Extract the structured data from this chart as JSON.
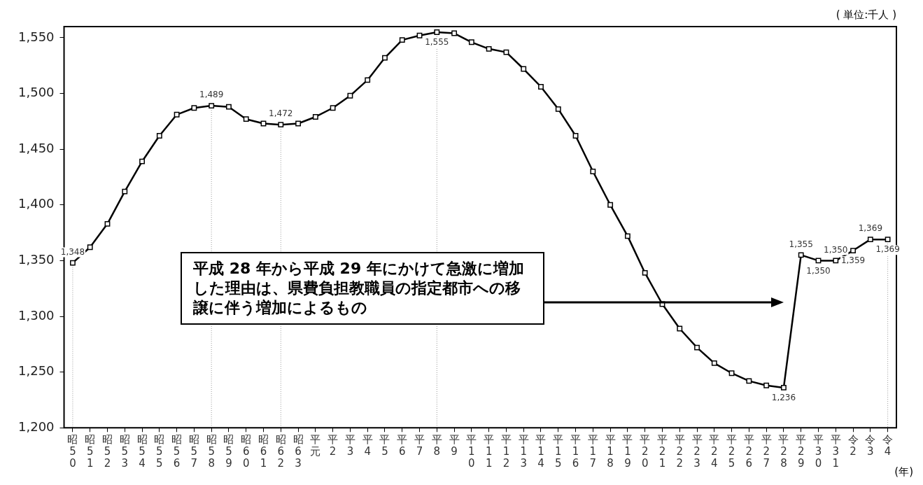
{
  "chart_data": {
    "type": "line",
    "ylabel": "( 単位:千人 )",
    "xlabel": "(年)",
    "categories": [
      "昭50",
      "昭51",
      "昭52",
      "昭53",
      "昭54",
      "昭55",
      "昭56",
      "昭57",
      "昭58",
      "昭59",
      "昭60",
      "昭61",
      "昭62",
      "昭63",
      "平元",
      "平2",
      "平3",
      "平4",
      "平5",
      "平6",
      "平7",
      "平8",
      "平9",
      "平10",
      "平11",
      "平12",
      "平13",
      "平14",
      "平15",
      "平16",
      "平17",
      "平18",
      "平19",
      "平20",
      "平21",
      "平22",
      "平23",
      "平24",
      "平25",
      "平26",
      "平27",
      "平28",
      "平29",
      "平30",
      "平31",
      "令2",
      "令3",
      "令4"
    ],
    "series": [
      {
        "color": "#000000",
        "values": [
          1348,
          1362,
          1383,
          1412,
          1439,
          1462,
          1481,
          1487,
          1489,
          1488,
          1477,
          1473,
          1472,
          1473,
          1479,
          1487,
          1498,
          1512,
          1532,
          1548,
          1552,
          1555,
          1554,
          1546,
          1540,
          1537,
          1522,
          1506,
          1486,
          1462,
          1430,
          1400,
          1372,
          1339,
          1311,
          1289,
          1272,
          1258,
          1249,
          1242,
          1238,
          1236,
          1355,
          1350,
          1350,
          1359,
          1369,
          1369
        ],
        "value_labels": [
          "1,348",
          null,
          null,
          null,
          null,
          null,
          null,
          null,
          "1,489",
          null,
          null,
          null,
          "1,472",
          null,
          null,
          null,
          null,
          null,
          null,
          null,
          null,
          "1,555",
          null,
          null,
          null,
          null,
          null,
          null,
          null,
          null,
          null,
          null,
          null,
          null,
          null,
          null,
          null,
          null,
          null,
          null,
          null,
          "1,236",
          "1,355",
          "1,350",
          "1,350",
          "1,359",
          "1,369",
          "1,369"
        ]
      }
    ],
    "ylim": [
      1200,
      1560
    ],
    "yticks": [
      {
        "value": 1200,
        "label": "1,200"
      },
      {
        "value": 1250,
        "label": "1,250"
      },
      {
        "value": 1300,
        "label": "1,300"
      },
      {
        "value": 1350,
        "label": "1,350"
      },
      {
        "value": 1400,
        "label": "1,400"
      },
      {
        "value": 1450,
        "label": "1,450"
      },
      {
        "value": 1500,
        "label": "1,500"
      },
      {
        "value": 1550,
        "label": "1,550"
      }
    ],
    "marker": "square",
    "line_style": "solid",
    "grid": false,
    "legend": false,
    "ref_lines": [
      {
        "axis": "x",
        "value": "昭50",
        "line_style": "dotted",
        "color": "#999999"
      },
      {
        "axis": "x",
        "value": "昭58",
        "line_style": "dotted",
        "color": "#999999"
      },
      {
        "axis": "x",
        "value": "昭62",
        "line_style": "dotted",
        "color": "#999999"
      },
      {
        "axis": "x",
        "value": "平8",
        "line_style": "dotted",
        "color": "#999999"
      },
      {
        "axis": "x",
        "value": "令4",
        "line_style": "dotted",
        "color": "#999999"
      }
    ],
    "annotations": [
      "平成 28 年から平成 29 年にかけて急激に増加した理由は、県費負担教職員の指定都市への移譲に伴う増加によるもの"
    ]
  }
}
